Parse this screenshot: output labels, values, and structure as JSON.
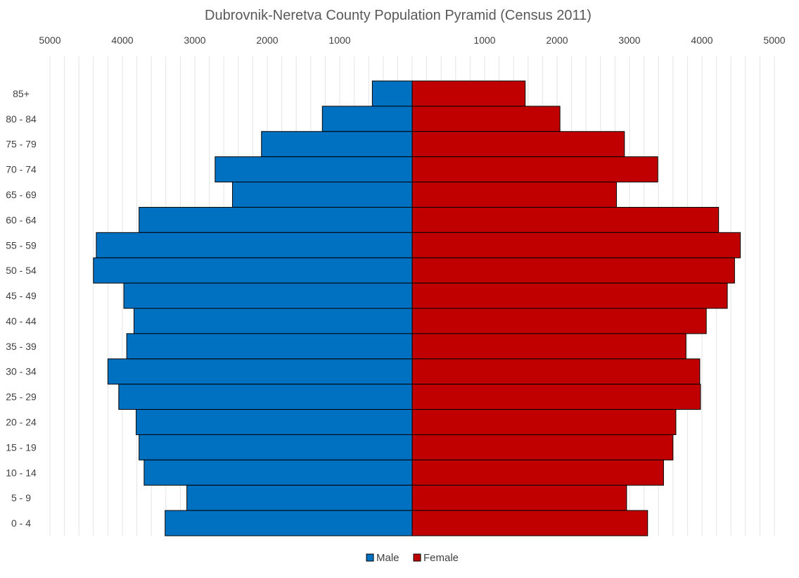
{
  "chart_data": {
    "type": "bar",
    "orientation": "horizontal",
    "title": "Dubrovnik-Neretva County Population Pyramid (Census 2011)",
    "categories": [
      "85+",
      "80 - 84",
      "75 - 79",
      "70 - 74",
      "65 - 69",
      "60 - 64",
      "55 - 59",
      "50 - 54",
      "45 - 49",
      "40 - 44",
      "35 - 39",
      "30 - 34",
      "25 - 29",
      "20 - 24",
      "15 - 19",
      "10 - 14",
      "5 - 9",
      "0 - 4"
    ],
    "series": [
      {
        "name": "Male",
        "color": "#0070c0",
        "values": [
          550,
          1240,
          2080,
          2720,
          2480,
          3770,
          4360,
          4400,
          3980,
          3840,
          3940,
          4200,
          4050,
          3810,
          3770,
          3700,
          3110,
          3410
        ]
      },
      {
        "name": "Female",
        "color": "#c00000",
        "values": [
          1560,
          2040,
          2930,
          3390,
          2820,
          4230,
          4530,
          4450,
          4350,
          4060,
          3780,
          3970,
          3980,
          3640,
          3600,
          3470,
          2960,
          3250
        ]
      }
    ],
    "xlim": [
      -5000,
      5000
    ],
    "xticks": [
      -5000,
      -4000,
      -3000,
      -2000,
      -1000,
      1000,
      2000,
      3000,
      4000,
      5000
    ],
    "xtick_labels": [
      "5000",
      "4000",
      "3000",
      "2000",
      "1000",
      "1000",
      "2000",
      "3000",
      "4000",
      "5000"
    ],
    "minor_grid_step": 200,
    "xaxis_position": "top",
    "grid": true,
    "legend_position": "bottom"
  }
}
